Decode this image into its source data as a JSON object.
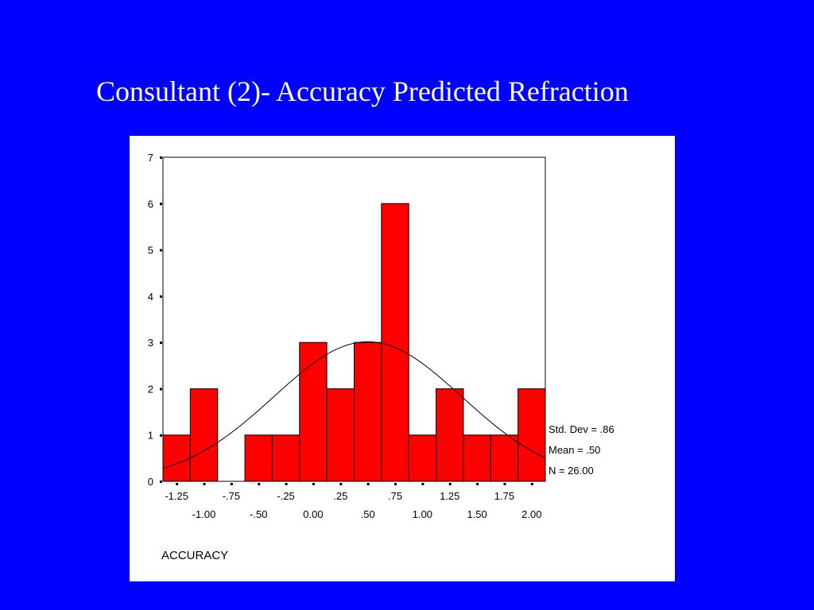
{
  "slide": {
    "title": "Consultant (2)- Accuracy Predicted Refraction"
  },
  "colors": {
    "background": "#0000ff",
    "bar_fill": "#ff0000",
    "bar_stroke": "#000000",
    "panel": "#ffffff"
  },
  "chart_data": {
    "type": "bar",
    "subtype": "histogram",
    "xlabel": "ACCURACY",
    "ylabel": "",
    "ylim": [
      0,
      7
    ],
    "yticks": [
      "0",
      "1",
      "2",
      "3",
      "4",
      "5",
      "6",
      "7"
    ],
    "xlim": [
      -1.375,
      2.125
    ],
    "bin_width": 0.25,
    "bin_centers": [
      -1.25,
      -1.0,
      -0.75,
      -0.5,
      -0.25,
      0.0,
      0.25,
      0.5,
      0.75,
      1.0,
      1.25,
      1.5,
      1.75,
      2.0
    ],
    "values": [
      1,
      2,
      0,
      1,
      1,
      3,
      2,
      3,
      6,
      1,
      2,
      1,
      1,
      2
    ],
    "tick_labels_row1": [
      {
        "x": -1.25,
        "label": "-1.25"
      },
      {
        "x": -0.75,
        "label": "-.75"
      },
      {
        "x": -0.25,
        "label": "-.25"
      },
      {
        "x": 0.25,
        "label": ".25"
      },
      {
        "x": 0.75,
        "label": ".75"
      },
      {
        "x": 1.25,
        "label": "1.25"
      },
      {
        "x": 1.75,
        "label": "1.75"
      }
    ],
    "tick_labels_row2": [
      {
        "x": -1.0,
        "label": "-1.00"
      },
      {
        "x": -0.5,
        "label": "-.50"
      },
      {
        "x": 0.0,
        "label": "0.00"
      },
      {
        "x": 0.5,
        "label": ".50"
      },
      {
        "x": 1.0,
        "label": "1.00"
      },
      {
        "x": 1.5,
        "label": "1.50"
      },
      {
        "x": 2.0,
        "label": "2.00"
      }
    ],
    "normal_curve": {
      "mean": 0.5,
      "std_dev": 0.86,
      "n": 26
    },
    "stats_text": [
      "Std. Dev = .86",
      "Mean = .50",
      "N = 26.00"
    ],
    "grid": false
  }
}
